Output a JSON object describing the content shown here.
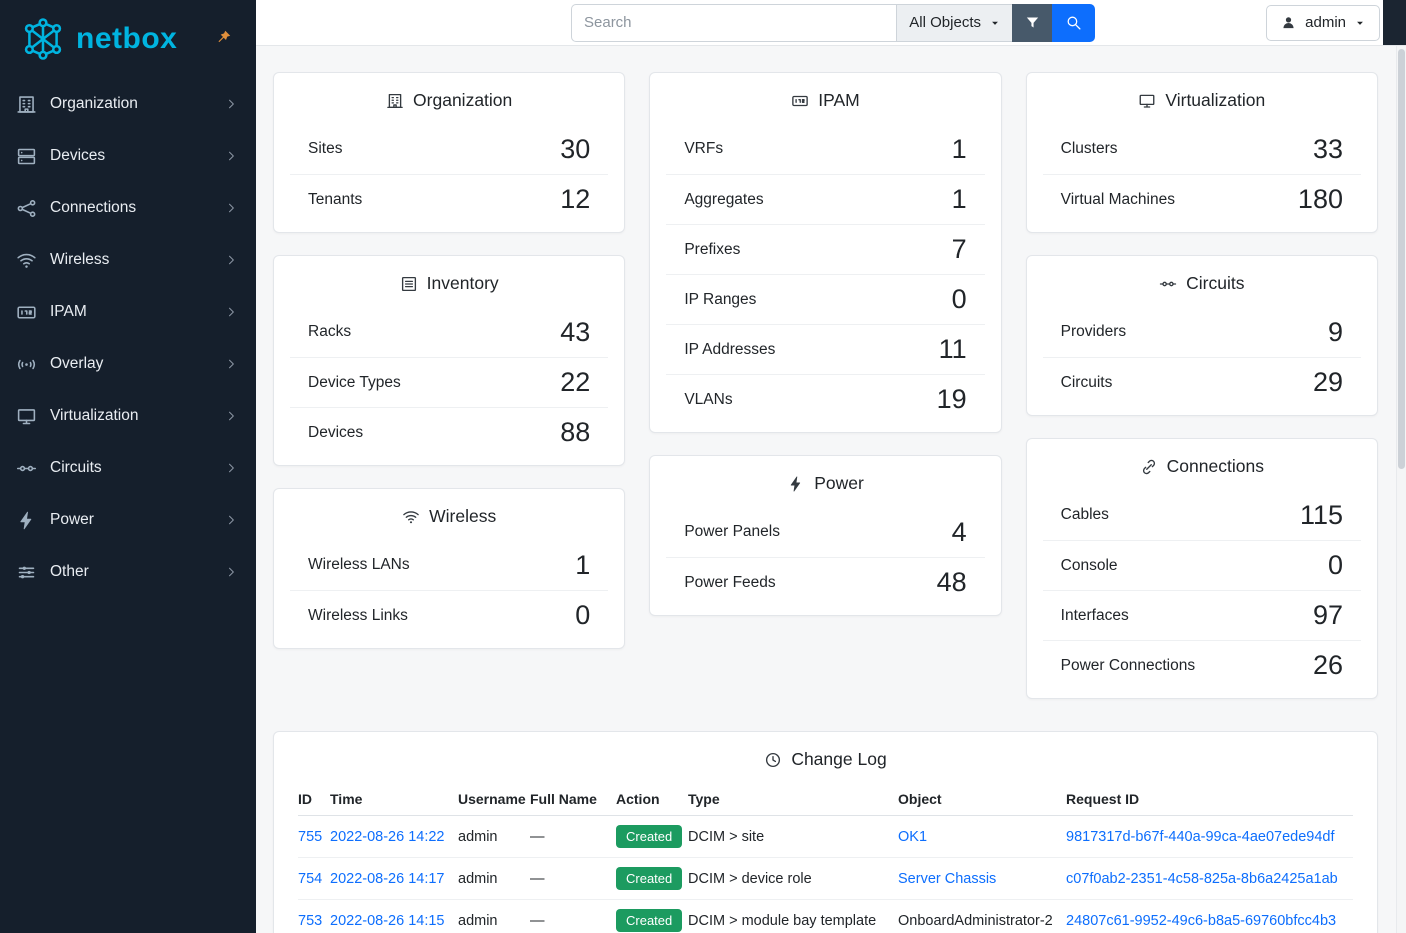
{
  "sidebar": {
    "logo": "netbox",
    "items": [
      {
        "label": "Organization",
        "icon": "organization-icon"
      },
      {
        "label": "Devices",
        "icon": "devices-icon"
      },
      {
        "label": "Connections",
        "icon": "connections-icon"
      },
      {
        "label": "Wireless",
        "icon": "wireless-icon"
      },
      {
        "label": "IPAM",
        "icon": "ipam-icon"
      },
      {
        "label": "Overlay",
        "icon": "overlay-icon"
      },
      {
        "label": "Virtualization",
        "icon": "virtualization-icon"
      },
      {
        "label": "Circuits",
        "icon": "circuits-icon"
      },
      {
        "label": "Power",
        "icon": "power-icon"
      },
      {
        "label": "Other",
        "icon": "other-icon"
      }
    ]
  },
  "topbar": {
    "search_placeholder": "Search",
    "object_type": "All Objects",
    "user": "admin"
  },
  "dashboard": {
    "columns": [
      [
        {
          "title": "Organization",
          "icon": "organization-icon",
          "stats": [
            {
              "label": "Sites",
              "value": "30"
            },
            {
              "label": "Tenants",
              "value": "12"
            }
          ]
        },
        {
          "title": "Inventory",
          "icon": "inventory-icon",
          "stats": [
            {
              "label": "Racks",
              "value": "43"
            },
            {
              "label": "Device Types",
              "value": "22"
            },
            {
              "label": "Devices",
              "value": "88"
            }
          ]
        },
        {
          "title": "Wireless",
          "icon": "wireless-icon",
          "stats": [
            {
              "label": "Wireless LANs",
              "value": "1"
            },
            {
              "label": "Wireless Links",
              "value": "0"
            }
          ]
        }
      ],
      [
        {
          "title": "IPAM",
          "icon": "ipam-icon",
          "stats": [
            {
              "label": "VRFs",
              "value": "1"
            },
            {
              "label": "Aggregates",
              "value": "1"
            },
            {
              "label": "Prefixes",
              "value": "7"
            },
            {
              "label": "IP Ranges",
              "value": "0"
            },
            {
              "label": "IP Addresses",
              "value": "11"
            },
            {
              "label": "VLANs",
              "value": "19"
            }
          ]
        },
        {
          "title": "Power",
          "icon": "power-icon",
          "stats": [
            {
              "label": "Power Panels",
              "value": "4"
            },
            {
              "label": "Power Feeds",
              "value": "48"
            }
          ]
        }
      ],
      [
        {
          "title": "Virtualization",
          "icon": "virtualization-icon",
          "stats": [
            {
              "label": "Clusters",
              "value": "33"
            },
            {
              "label": "Virtual Machines",
              "value": "180"
            }
          ]
        },
        {
          "title": "Circuits",
          "icon": "circuits-icon",
          "stats": [
            {
              "label": "Providers",
              "value": "9"
            },
            {
              "label": "Circuits",
              "value": "29"
            }
          ]
        },
        {
          "title": "Connections",
          "icon": "cable-icon",
          "stats": [
            {
              "label": "Cables",
              "value": "115"
            },
            {
              "label": "Console",
              "value": "0"
            },
            {
              "label": "Interfaces",
              "value": "97"
            },
            {
              "label": "Power Connections",
              "value": "26"
            }
          ]
        }
      ]
    ]
  },
  "changelog": {
    "title": "Change Log",
    "icon": "history-icon",
    "columns": [
      "ID",
      "Time",
      "Username",
      "Full Name",
      "Action",
      "Type",
      "Object",
      "Request ID"
    ],
    "rows": [
      {
        "id": "755",
        "time": "2022-08-26 14:22",
        "username": "admin",
        "full_name": "—",
        "action": "Created",
        "type": "DCIM > site",
        "object": "OK1",
        "object_is_link": true,
        "request_id": "9817317d-b67f-440a-99ca-4ae07ede94df"
      },
      {
        "id": "754",
        "time": "2022-08-26 14:17",
        "username": "admin",
        "full_name": "—",
        "action": "Created",
        "type": "DCIM > device role",
        "object": "Server Chassis",
        "object_is_link": true,
        "request_id": "c07f0ab2-2351-4c58-825a-8b6a2425a1ab"
      },
      {
        "id": "753",
        "time": "2022-08-26 14:15",
        "username": "admin",
        "full_name": "—",
        "action": "Created",
        "type": "DCIM > module bay template",
        "object": "OnboardAdministrator-2",
        "object_is_link": false,
        "request_id": "24807c61-9952-49c6-b8a5-69760bfcc4b3"
      }
    ]
  },
  "colors": {
    "accent": "#00b4e0",
    "primary": "#0d6efd",
    "link": "#0d6efd",
    "success": "#1c9b60",
    "sidebar_bg": "#151f2c",
    "filter_btn": "#47596a"
  }
}
